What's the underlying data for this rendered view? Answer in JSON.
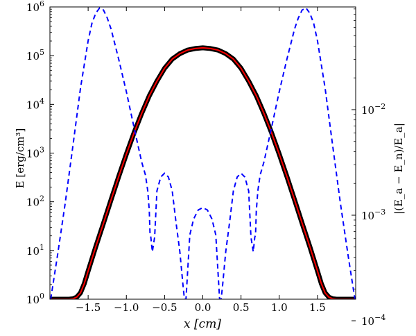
{
  "chart_data": {
    "type": "line",
    "xlabel": "x [cm]",
    "ylabel": "E [erg/cm³]",
    "ylabel_right": "|(E_a − E_n)/E_a|",
    "xlim": [
      -2.0,
      2.0
    ],
    "ylim_left": [
      1,
      1000000
    ],
    "ylim_right": [
      0.00016,
      0.094
    ],
    "y_scale": "log",
    "y2_scale": "log",
    "grid": false,
    "x_ticks": [
      "−1.5",
      "−1.0",
      "−0.5",
      "0.0",
      "0.5",
      "1.0",
      "1.5"
    ],
    "x_tick_values": [
      -1.5,
      -1.0,
      -0.5,
      0.0,
      0.5,
      1.0,
      1.5
    ],
    "y_ticks_left": [
      {
        "base": "10",
        "exp": "0",
        "value": 1
      },
      {
        "base": "10",
        "exp": "1",
        "value": 10
      },
      {
        "base": "10",
        "exp": "2",
        "value": 100
      },
      {
        "base": "10",
        "exp": "3",
        "value": 1000
      },
      {
        "base": "10",
        "exp": "4",
        "value": 10000
      },
      {
        "base": "10",
        "exp": "5",
        "value": 100000
      },
      {
        "base": "10",
        "exp": "6",
        "value": 1000000
      }
    ],
    "y_ticks_right": [
      {
        "base": "10",
        "exp": "−2",
        "value": 0.01
      },
      {
        "base": "10",
        "exp": "−3",
        "value": 0.001
      },
      {
        "base": "10",
        "exp": "−4",
        "value": 0.0001
      }
    ],
    "series": [
      {
        "role": "analytic",
        "axis": "left",
        "color": "#000000",
        "style": "solid",
        "marker": "circle",
        "x": [
          -2.0,
          -1.95,
          -1.9,
          -1.8,
          -1.75,
          -1.7,
          -1.65,
          -1.6,
          -1.55,
          -1.5,
          -1.4,
          -1.3,
          -1.2,
          -1.1,
          -1.0,
          -0.9,
          -0.8,
          -0.7,
          -0.6,
          -0.5,
          -0.4,
          -0.3,
          -0.2,
          -0.1,
          0.0,
          0.1,
          0.2,
          0.3,
          0.4,
          0.5,
          0.6,
          0.7,
          0.8,
          0.9,
          1.0,
          1.1,
          1.2,
          1.3,
          1.4,
          1.5,
          1.55,
          1.6,
          1.65,
          1.7,
          1.75,
          1.8,
          1.9,
          1.95,
          2.0
        ],
        "y": [
          1.0,
          1.0,
          1.0,
          1.0,
          1.0,
          1.02,
          1.1,
          1.35,
          2.1,
          3.8,
          12,
          36,
          110,
          330,
          950,
          2600,
          6500,
          15000,
          30000,
          55000,
          85000,
          110000,
          130000,
          140000,
          145000,
          140000,
          130000,
          110000,
          85000,
          55000,
          30000,
          15000,
          6500,
          2600,
          950,
          330,
          110,
          36,
          12,
          3.8,
          2.1,
          1.35,
          1.1,
          1.02,
          1.0,
          1.0,
          1.0,
          1.0,
          1.0
        ]
      },
      {
        "role": "numerical",
        "axis": "left",
        "color": "#ff0000",
        "style": "solid",
        "x": [
          -2.0,
          -1.95,
          -1.9,
          -1.8,
          -1.75,
          -1.7,
          -1.65,
          -1.6,
          -1.55,
          -1.5,
          -1.4,
          -1.3,
          -1.2,
          -1.1,
          -1.0,
          -0.9,
          -0.8,
          -0.7,
          -0.6,
          -0.5,
          -0.4,
          -0.3,
          -0.2,
          -0.1,
          0.0,
          0.1,
          0.2,
          0.3,
          0.4,
          0.5,
          0.6,
          0.7,
          0.8,
          0.9,
          1.0,
          1.1,
          1.2,
          1.3,
          1.4,
          1.5,
          1.55,
          1.6,
          1.65,
          1.7,
          1.75,
          1.8,
          1.9,
          1.95,
          2.0
        ],
        "y": [
          1.0,
          1.0,
          1.0,
          1.0,
          1.0,
          1.02,
          1.1,
          1.35,
          2.1,
          3.8,
          12,
          36,
          110,
          330,
          950,
          2600,
          6500,
          15000,
          30000,
          55000,
          85000,
          110000,
          130000,
          140000,
          145000,
          140000,
          130000,
          110000,
          85000,
          55000,
          30000,
          15000,
          6500,
          2600,
          950,
          330,
          110,
          36,
          12,
          3.8,
          2.1,
          1.35,
          1.1,
          1.02,
          1.0,
          1.0,
          1.0,
          1.0,
          1.0
        ]
      },
      {
        "role": "relative-error",
        "axis": "right",
        "color": "#0000ff",
        "style": "dashed",
        "x": [
          -1.99,
          -1.9,
          -1.8,
          -1.7,
          -1.6,
          -1.5,
          -1.45,
          -1.4,
          -1.35,
          -1.3,
          -1.25,
          -1.2,
          -1.1,
          -1.0,
          -0.9,
          -0.8,
          -0.75,
          -0.72,
          -0.7,
          -0.69,
          -0.68,
          -0.66,
          -0.63,
          -0.6,
          -0.55,
          -0.5,
          -0.45,
          -0.4,
          -0.35,
          -0.3,
          -0.26,
          -0.24,
          -0.23,
          -0.22,
          -0.2,
          -0.17,
          -0.12,
          -0.06,
          0.0,
          0.06,
          0.12,
          0.17,
          0.2,
          0.22,
          0.23,
          0.24,
          0.26,
          0.3,
          0.35,
          0.4,
          0.45,
          0.5,
          0.55,
          0.6,
          0.63,
          0.66,
          0.68,
          0.69,
          0.7,
          0.72,
          0.75,
          0.8,
          0.9,
          1.0,
          1.1,
          1.2,
          1.25,
          1.3,
          1.35,
          1.4,
          1.45,
          1.5,
          1.6,
          1.7,
          1.8,
          1.9,
          1.99
        ],
        "y": [
          0.00016,
          0.00042,
          0.0013,
          0.0045,
          0.016,
          0.045,
          0.066,
          0.082,
          0.092,
          0.088,
          0.074,
          0.058,
          0.03,
          0.0148,
          0.0068,
          0.0032,
          0.0024,
          0.0017,
          0.0011,
          0.00065,
          0.00062,
          0.00045,
          0.00062,
          0.0017,
          0.0023,
          0.0025,
          0.0023,
          0.0017,
          0.00085,
          0.00045,
          0.00022,
          0.00016,
          0.00016,
          0.00016,
          0.00028,
          0.00065,
          0.00092,
          0.00112,
          0.00118,
          0.00112,
          0.00092,
          0.00065,
          0.00028,
          0.00016,
          0.00016,
          0.00016,
          0.00022,
          0.00045,
          0.00085,
          0.0017,
          0.0023,
          0.0025,
          0.0023,
          0.0017,
          0.00062,
          0.00045,
          0.00062,
          0.00065,
          0.0011,
          0.0017,
          0.0024,
          0.0032,
          0.0068,
          0.0148,
          0.03,
          0.058,
          0.074,
          0.088,
          0.092,
          0.082,
          0.066,
          0.045,
          0.016,
          0.0045,
          0.0013,
          0.00042,
          0.00016
        ]
      }
    ]
  }
}
